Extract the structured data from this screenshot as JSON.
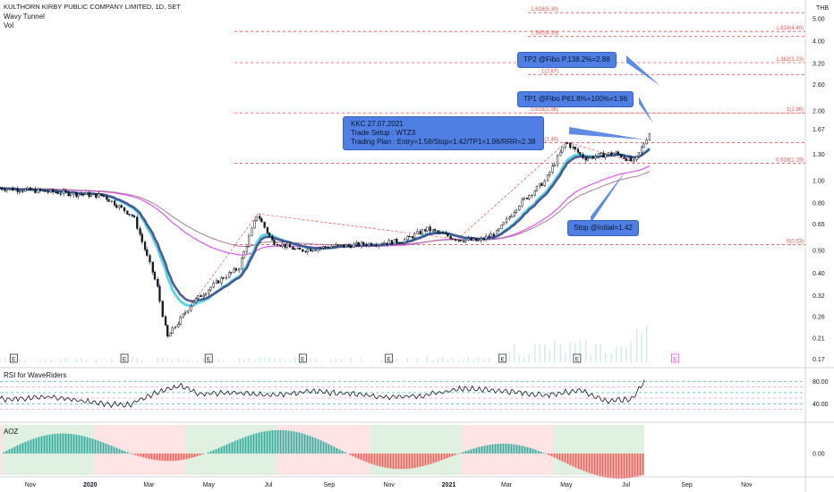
{
  "header": {
    "title": "KULTHORN KIRBY PUBLIC COMPANY LIMITED, 1D, SET",
    "indicator1": "Wavy Tunnel",
    "indicator2": "Vol",
    "currency": "THB"
  },
  "panes": {
    "rsi_label": "RSI for WaveRiders",
    "aoz_label": "AOZ"
  },
  "annotations": {
    "tp2": "TP2 @Fibo P.138.2%=2.88",
    "tp1": "TP1 @Fibo P61.8%+100%=1.96",
    "setup_line1": "KKC 27.07.2021",
    "setup_line2": "Trade Setup : WTZ3",
    "setup_line3": "Trading Plan : Entry=1.58/Stop=1.42/TP1=1.96/RRR=2.38",
    "stop": "Stop @Initial=1.42"
  },
  "colors": {
    "candle": "#131722",
    "fib": "#ef5350",
    "tunnel_cyan": "#4dd0e1",
    "tunnel_navy": "#3f4a8a",
    "tunnel_magenta": "#e040fb",
    "note_bg": "#4f7fe3",
    "rsi_line": "#131722",
    "aoz_green": "#26a69a",
    "aoz_red": "#ef5350"
  },
  "chart_data": {
    "type": "candlestick",
    "price_scale": "log",
    "ylim": [
      0.165,
      5.6
    ],
    "y_ticks": [
      "5.00",
      "4.00",
      "3.20",
      "2.60",
      "2.00",
      "1.67",
      "1.30",
      "1.00",
      "0.80",
      "0.65",
      "0.50",
      "0.40",
      "0.32",
      "0.26",
      "0.21",
      "0.17"
    ],
    "x_ticks": [
      "Nov",
      "2020",
      "Mar",
      "May",
      "Jul",
      "Sep",
      "Nov",
      "2021",
      "Mar",
      "May",
      "Jul",
      "Sep",
      "Nov"
    ],
    "price_path": [
      [
        "2019-10-01",
        0.93
      ],
      [
        "2019-11-15",
        0.9
      ],
      [
        "2020-01-15",
        0.86
      ],
      [
        "2020-02-15",
        0.7
      ],
      [
        "2020-03-10",
        0.35
      ],
      [
        "2020-03-20",
        0.21
      ],
      [
        "2020-04-15",
        0.3
      ],
      [
        "2020-05-15",
        0.38
      ],
      [
        "2020-06-01",
        0.42
      ],
      [
        "2020-06-20",
        0.72
      ],
      [
        "2020-07-05",
        0.55
      ],
      [
        "2020-08-01",
        0.5
      ],
      [
        "2020-09-01",
        0.52
      ],
      [
        "2020-10-01",
        0.53
      ],
      [
        "2020-11-15",
        0.55
      ],
      [
        "2020-12-10",
        0.62
      ],
      [
        "2021-01-10",
        0.56
      ],
      [
        "2021-02-01",
        0.55
      ],
      [
        "2021-02-20",
        0.6
      ],
      [
        "2021-03-15",
        0.8
      ],
      [
        "2021-04-10",
        1.0
      ],
      [
        "2021-05-01",
        1.47
      ],
      [
        "2021-05-20",
        1.25
      ],
      [
        "2021-06-20",
        1.32
      ],
      [
        "2021-07-10",
        1.2
      ],
      [
        "2021-07-27",
        1.67
      ]
    ],
    "fibonacci": [
      {
        "label": "1.618(5.30)"
      },
      {
        "label": "1.618(4.40)"
      },
      {
        "label": "1.382(4.19)"
      },
      {
        "label": "1.382(3.23)"
      },
      {
        "label": "1(2.87)"
      },
      {
        "label": "0.618(1.96)"
      },
      {
        "label": "1(1.96)"
      },
      {
        "label": "0(1.46)"
      },
      {
        "label": "0.618(1.19)"
      },
      {
        "label": "0(0.53)"
      }
    ],
    "events_marker": "E",
    "rsi": {
      "ticks": [
        "80.00",
        "40.00"
      ],
      "path": [
        [
          0,
          48
        ],
        [
          0.08,
          52
        ],
        [
          0.16,
          40
        ],
        [
          0.2,
          38
        ],
        [
          0.23,
          55
        ],
        [
          0.28,
          72
        ],
        [
          0.31,
          58
        ],
        [
          0.36,
          60
        ],
        [
          0.42,
          55
        ],
        [
          0.48,
          62
        ],
        [
          0.55,
          58
        ],
        [
          0.6,
          52
        ],
        [
          0.66,
          55
        ],
        [
          0.72,
          68
        ],
        [
          0.78,
          63
        ],
        [
          0.85,
          55
        ],
        [
          0.9,
          65
        ],
        [
          0.94,
          45
        ],
        [
          0.98,
          48
        ],
        [
          1.0,
          80
        ]
      ]
    },
    "aoz": {
      "ticks": [
        "0.00"
      ]
    }
  }
}
